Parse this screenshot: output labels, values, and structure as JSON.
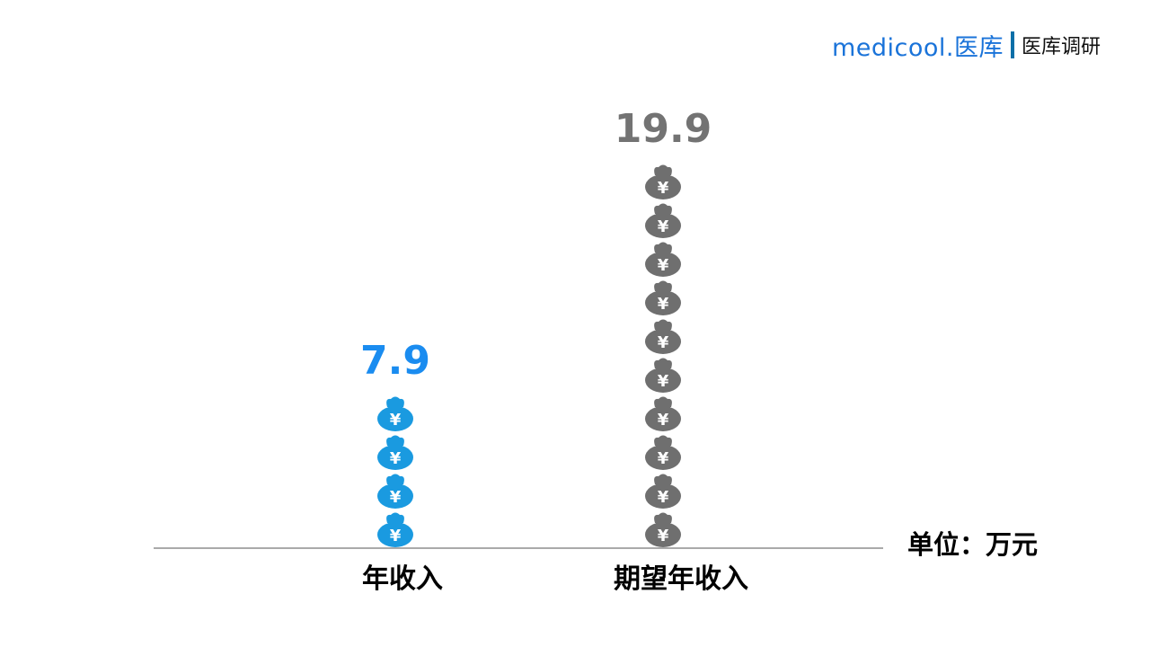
{
  "header": {
    "brand": "medicool.医库",
    "subtitle": "医库调研"
  },
  "chart_data": {
    "type": "bar",
    "style": "pictograph",
    "icon": "money-bag-yen-icon",
    "icon_glyph": "¥",
    "categories": [
      "年收入",
      "期望年收入"
    ],
    "values": [
      7.9,
      19.9
    ],
    "value_labels": [
      "7.9",
      "19.9"
    ],
    "colors": [
      "#1a9ae0",
      "#6f6f6f"
    ],
    "label_colors": [
      "#1a8cf0",
      "#737373"
    ],
    "unit_label": "单位：万元",
    "title": "",
    "xlabel": "",
    "ylabel": "",
    "ylim": [
      0,
      20
    ],
    "grid": false
  }
}
